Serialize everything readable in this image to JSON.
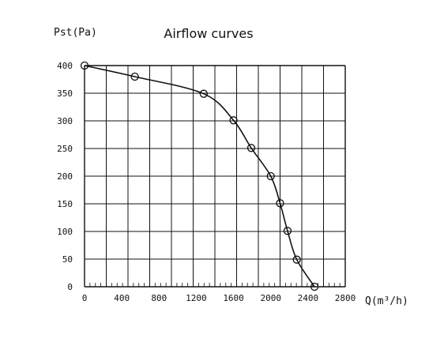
{
  "chart_data": {
    "type": "line",
    "title": "Airflow curves",
    "xlabel": "Q(m³/h)",
    "ylabel": "Pst(Pa)",
    "xlim": [
      0,
      2800
    ],
    "ylim": [
      0,
      400
    ],
    "x_ticks": [
      "0",
      "400",
      "800",
      "1200",
      "1600",
      "2000",
      "2400",
      "2800"
    ],
    "y_ticks": [
      "0",
      "50",
      "100",
      "150",
      "200",
      "250",
      "300",
      "350",
      "400"
    ],
    "grid": true,
    "series": [
      {
        "markers": "circle",
        "points": [
          {
            "x": 0,
            "y": 400
          },
          {
            "x": 540,
            "y": 380
          },
          {
            "x": 1280,
            "y": 349
          },
          {
            "x": 1600,
            "y": 301
          },
          {
            "x": 1790,
            "y": 251
          },
          {
            "x": 2000,
            "y": 200
          },
          {
            "x": 2100,
            "y": 151
          },
          {
            "x": 2180,
            "y": 101
          },
          {
            "x": 2280,
            "y": 49
          },
          {
            "x": 2470,
            "y": 0
          }
        ]
      }
    ]
  }
}
